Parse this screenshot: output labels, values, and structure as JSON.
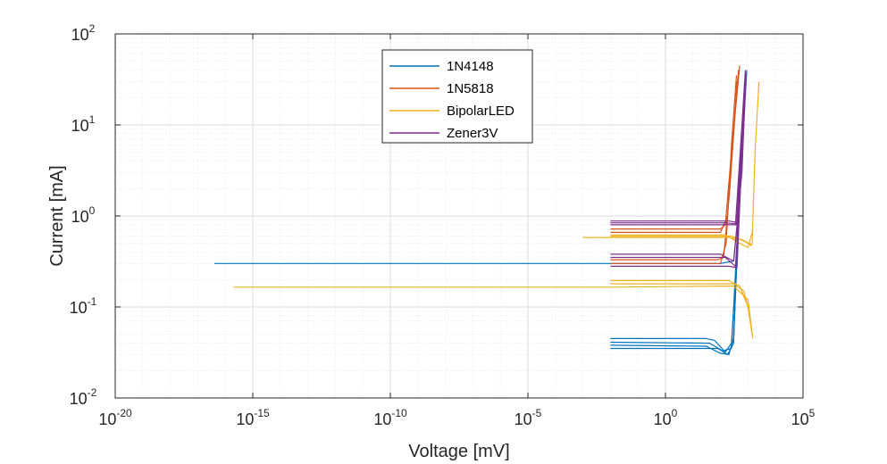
{
  "chart_data": {
    "type": "line",
    "xlabel": "Voltage [mV]",
    "ylabel": "Current [mA]",
    "xscale": "log",
    "yscale": "log",
    "xlim": [
      1e-20,
      100000.0
    ],
    "ylim": [
      0.01,
      100
    ],
    "grid": true,
    "minor_grid": true,
    "legend_position": "top-center",
    "x_ticks": [
      {
        "base": "10",
        "exp": "-20"
      },
      {
        "base": "10",
        "exp": "-15"
      },
      {
        "base": "10",
        "exp": "-10"
      },
      {
        "base": "10",
        "exp": "-5"
      },
      {
        "base": "10",
        "exp": "0"
      },
      {
        "base": "10",
        "exp": "5"
      }
    ],
    "y_ticks": [
      {
        "base": "10",
        "exp": "-2"
      },
      {
        "base": "10",
        "exp": "-1"
      },
      {
        "base": "10",
        "exp": "0"
      },
      {
        "base": "10",
        "exp": "1"
      },
      {
        "base": "10",
        "exp": "2"
      }
    ],
    "series": [
      {
        "name": "1N4148",
        "color": "#0072BD",
        "traces": [
          [
            [
              4e-17,
              0.3
            ],
            [
              0.01,
              0.3
            ],
            [
              100,
              0.3
            ],
            [
              300,
              0.32
            ],
            [
              500,
              1.5
            ],
            [
              900,
              40
            ]
          ],
          [
            [
              0.01,
              0.045
            ],
            [
              30,
              0.045
            ],
            [
              60,
              0.043
            ],
            [
              150,
              0.032
            ],
            [
              250,
              0.04
            ],
            [
              350,
              0.2
            ],
            [
              500,
              2
            ],
            [
              800,
              30
            ]
          ],
          [
            [
              0.01,
              0.041
            ],
            [
              40,
              0.04
            ],
            [
              120,
              0.033
            ],
            [
              250,
              0.035
            ],
            [
              400,
              0.5
            ],
            [
              700,
              10
            ]
          ],
          [
            [
              0.01,
              0.038
            ],
            [
              30,
              0.037
            ],
            [
              100,
              0.031
            ],
            [
              200,
              0.03
            ],
            [
              300,
              0.045
            ],
            [
              450,
              0.8
            ],
            [
              800,
              25
            ]
          ],
          [
            [
              0.01,
              0.035
            ],
            [
              80,
              0.035
            ],
            [
              180,
              0.03
            ],
            [
              300,
              0.04
            ],
            [
              500,
              3
            ],
            [
              850,
              35
            ]
          ]
        ]
      },
      {
        "name": "1N5818",
        "color": "#D95319",
        "traces": [
          [
            [
              0.01,
              0.72
            ],
            [
              100,
              0.72
            ],
            [
              150,
              0.8
            ],
            [
              250,
              5
            ],
            [
              500,
              45
            ]
          ],
          [
            [
              0.01,
              0.66
            ],
            [
              100,
              0.66
            ],
            [
              180,
              1
            ],
            [
              300,
              8
            ],
            [
              450,
              40
            ]
          ],
          [
            [
              0.01,
              0.33
            ],
            [
              80,
              0.33
            ],
            [
              130,
              0.35
            ],
            [
              220,
              2
            ],
            [
              400,
              30
            ]
          ],
          [
            [
              0.01,
              0.3
            ],
            [
              100,
              0.3
            ],
            [
              160,
              0.5
            ],
            [
              250,
              6
            ],
            [
              380,
              35
            ]
          ]
        ]
      },
      {
        "name": "BipolarLED",
        "color": "#EDB120",
        "traces": [
          [
            [
              2e-16,
              0.165
            ],
            [
              0.01,
              0.165
            ],
            [
              300,
              0.17
            ],
            [
              1000,
              0.12
            ],
            [
              1500,
              0.045
            ]
          ],
          [
            [
              0.01,
              0.195
            ],
            [
              200,
              0.195
            ],
            [
              500,
              0.17
            ],
            [
              1000,
              0.1
            ],
            [
              1400,
              0.05
            ]
          ],
          [
            [
              0.01,
              0.18
            ],
            [
              300,
              0.18
            ],
            [
              700,
              0.15
            ],
            [
              1200,
              0.08
            ]
          ],
          [
            [
              0.001,
              0.58
            ],
            [
              200,
              0.58
            ],
            [
              600,
              0.55
            ],
            [
              1400,
              0.48
            ],
            [
              1800,
              5
            ],
            [
              2500,
              30
            ]
          ],
          [
            [
              0.01,
              0.62
            ],
            [
              150,
              0.62
            ],
            [
              500,
              0.5
            ],
            [
              1000,
              0.45
            ],
            [
              1500,
              0.7
            ]
          ],
          [
            [
              0.01,
              0.6
            ],
            [
              250,
              0.6
            ],
            [
              800,
              0.52
            ],
            [
              1300,
              0.47
            ]
          ]
        ]
      },
      {
        "name": "Zener3V",
        "color": "#7E2F8E",
        "traces": [
          [
            [
              0.01,
              0.88
            ],
            [
              200,
              0.88
            ],
            [
              400,
              0.85
            ],
            [
              800,
              40
            ]
          ],
          [
            [
              0.01,
              0.84
            ],
            [
              150,
              0.84
            ],
            [
              350,
              0.82
            ],
            [
              700,
              20
            ]
          ],
          [
            [
              0.01,
              0.8
            ],
            [
              180,
              0.8
            ],
            [
              380,
              0.8
            ],
            [
              750,
              30
            ]
          ],
          [
            [
              0.01,
              0.38
            ],
            [
              100,
              0.38
            ],
            [
              300,
              0.32
            ],
            [
              600,
              3
            ],
            [
              850,
              38
            ]
          ],
          [
            [
              0.01,
              0.35
            ],
            [
              150,
              0.35
            ],
            [
              350,
              0.28
            ],
            [
              700,
              10
            ]
          ],
          [
            [
              0.01,
              0.28
            ],
            [
              200,
              0.28
            ],
            [
              400,
              0.27
            ],
            [
              800,
              35
            ]
          ]
        ]
      }
    ]
  }
}
